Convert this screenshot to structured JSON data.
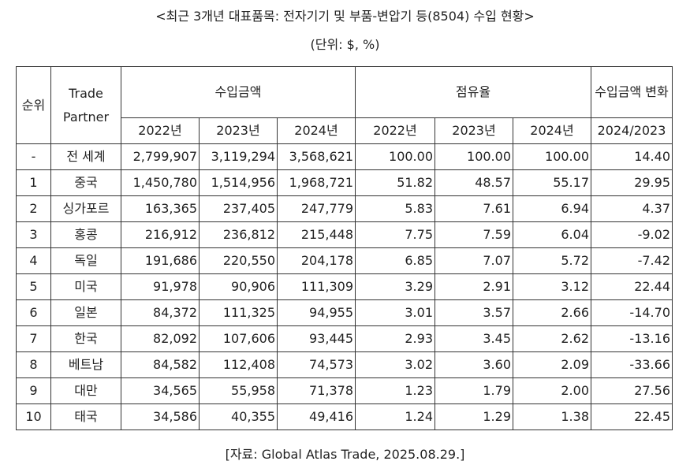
{
  "title": "<최근 3개년 대표품목: 전자기기 및 부품-변압기 등(8504) 수입 현황>",
  "unit": "(단위: $, %)",
  "source": "[자료: Global Atlas Trade, 2025.08.29.]",
  "headers": {
    "rank": "순위",
    "partner": "Trade Partner",
    "import_amount": "수입금액",
    "share": "점유율",
    "change": "수입금액 변화",
    "y2022": "2022년",
    "y2023": "2023년",
    "y2024": "2024년",
    "change_period": "2024/2023"
  },
  "rows": [
    {
      "rank": "-",
      "partner": "전 세계",
      "a2022": "2,799,907",
      "a2023": "3,119,294",
      "a2024": "3,568,621",
      "s2022": "100.00",
      "s2023": "100.00",
      "s2024": "100.00",
      "change": "14.40"
    },
    {
      "rank": "1",
      "partner": "중국",
      "a2022": "1,450,780",
      "a2023": "1,514,956",
      "a2024": "1,968,721",
      "s2022": "51.82",
      "s2023": "48.57",
      "s2024": "55.17",
      "change": "29.95"
    },
    {
      "rank": "2",
      "partner": "싱가포르",
      "a2022": "163,365",
      "a2023": "237,405",
      "a2024": "247,779",
      "s2022": "5.83",
      "s2023": "7.61",
      "s2024": "6.94",
      "change": "4.37"
    },
    {
      "rank": "3",
      "partner": "홍콩",
      "a2022": "216,912",
      "a2023": "236,812",
      "a2024": "215,448",
      "s2022": "7.75",
      "s2023": "7.59",
      "s2024": "6.04",
      "change": "-9.02"
    },
    {
      "rank": "4",
      "partner": "독일",
      "a2022": "191,686",
      "a2023": "220,550",
      "a2024": "204,178",
      "s2022": "6.85",
      "s2023": "7.07",
      "s2024": "5.72",
      "change": "-7.42"
    },
    {
      "rank": "5",
      "partner": "미국",
      "a2022": "91,978",
      "a2023": "90,906",
      "a2024": "111,309",
      "s2022": "3.29",
      "s2023": "2.91",
      "s2024": "3.12",
      "change": "22.44"
    },
    {
      "rank": "6",
      "partner": "일본",
      "a2022": "84,372",
      "a2023": "111,325",
      "a2024": "94,955",
      "s2022": "3.01",
      "s2023": "3.57",
      "s2024": "2.66",
      "change": "-14.70"
    },
    {
      "rank": "7",
      "partner": "한국",
      "a2022": "82,092",
      "a2023": "107,606",
      "a2024": "93,445",
      "s2022": "2.93",
      "s2023": "3.45",
      "s2024": "2.62",
      "change": "-13.16"
    },
    {
      "rank": "8",
      "partner": "베트남",
      "a2022": "84,582",
      "a2023": "112,408",
      "a2024": "74,573",
      "s2022": "3.02",
      "s2023": "3.60",
      "s2024": "2.09",
      "change": "-33.66"
    },
    {
      "rank": "9",
      "partner": "대만",
      "a2022": "34,565",
      "a2023": "55,958",
      "a2024": "71,378",
      "s2022": "1.23",
      "s2023": "1.79",
      "s2024": "2.00",
      "change": "27.56"
    },
    {
      "rank": "10",
      "partner": "태국",
      "a2022": "34,586",
      "a2023": "40,355",
      "a2024": "49,416",
      "s2022": "1.24",
      "s2023": "1.29",
      "s2024": "1.38",
      "change": "22.45"
    }
  ]
}
